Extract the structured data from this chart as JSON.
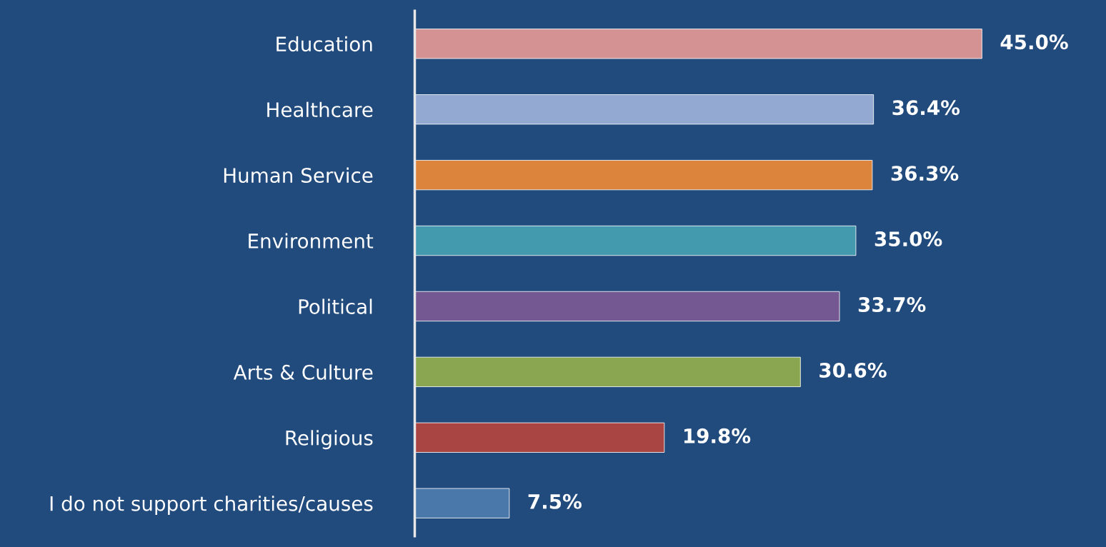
{
  "chart_data": {
    "type": "bar",
    "orientation": "horizontal",
    "categories": [
      "Education",
      "Healthcare",
      "Human Service",
      "Environment",
      "Political",
      "Arts & Culture",
      "Religious",
      "I do not support charities/causes"
    ],
    "values": [
      45.0,
      36.4,
      36.3,
      35.0,
      33.7,
      30.6,
      19.8,
      7.5
    ],
    "value_labels": [
      "45.0%",
      "36.4%",
      "36.3%",
      "35.0%",
      "33.7%",
      "30.6%",
      "19.8%",
      "7.5%"
    ],
    "colors": [
      "#d49292",
      "#94a9d2",
      "#dd843c",
      "#439aaf",
      "#735891",
      "#8ba650",
      "#a94643",
      "#4a78ab"
    ],
    "tick_labels": "y",
    "grid": false,
    "legend": false
  }
}
